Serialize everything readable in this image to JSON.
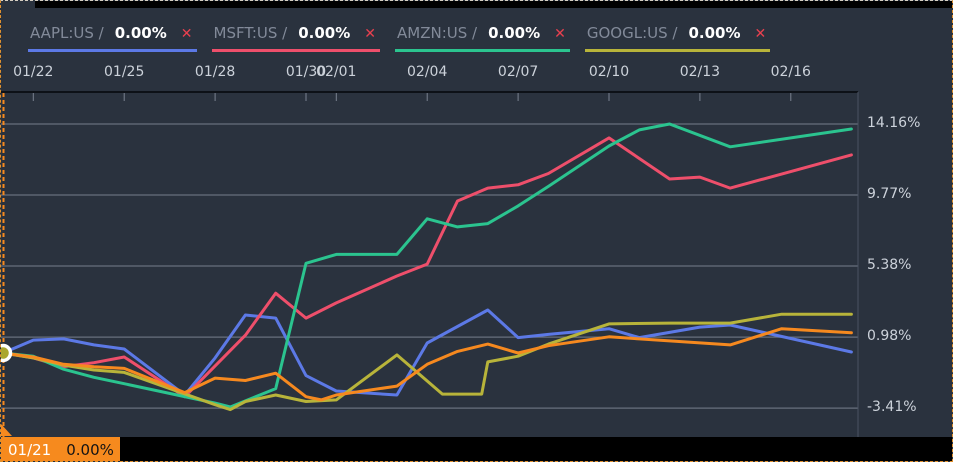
{
  "legend": {
    "items": [
      {
        "label": "AAPL:US /",
        "value": "0.00%",
        "close_icon": "✕",
        "color": "#5c79e6"
      },
      {
        "label": "MSFT:US /",
        "value": "0.00%",
        "close_icon": "✕",
        "color": "#ee4f6b"
      },
      {
        "label": "AMZN:US /",
        "value": "0.00%",
        "close_icon": "✕",
        "color": "#2bc48f"
      },
      {
        "label": "GOOGL:US /",
        "value": "0.00%",
        "close_icon": "✕",
        "color": "#b8b43a"
      }
    ]
  },
  "tooltip_badge": {
    "date": "01/21",
    "value": "0.00%",
    "bg_color": "#f68a1e"
  },
  "colors": {
    "background": "#2a323e",
    "grid": "#68707d",
    "axis_text": "#ccd2da",
    "tick": "#7b8391",
    "plot_top_border": "#0d1117",
    "crosshair_orange": "#f6891f",
    "marker_ring": "#ffffff",
    "marker_fill": "#aaa62e"
  },
  "chart_data": {
    "type": "line",
    "title": "",
    "xlabel": "",
    "ylabel": "",
    "x_unit": "calendar days since 01/21",
    "grid": "horizontal",
    "legend_position": "top",
    "ylim_pct": [
      -5.3,
      16.1
    ],
    "x_axis_ticks": [
      {
        "day": 1,
        "label": "01/22"
      },
      {
        "day": 4,
        "label": "01/25"
      },
      {
        "day": 7,
        "label": "01/28"
      },
      {
        "day": 10,
        "label": "01/30"
      },
      {
        "day": 11,
        "label": "02/01"
      },
      {
        "day": 14,
        "label": "02/04"
      },
      {
        "day": 17,
        "label": "02/07"
      },
      {
        "day": 20,
        "label": "02/10"
      },
      {
        "day": 23,
        "label": "02/13"
      },
      {
        "day": 26,
        "label": "02/16"
      }
    ],
    "y_axis_ticks": [
      {
        "pct": 14.16,
        "label": "14.16%"
      },
      {
        "pct": 9.77,
        "label": "9.77%"
      },
      {
        "pct": 5.38,
        "label": "5.38%"
      },
      {
        "pct": 0.98,
        "label": "0.98%"
      },
      {
        "pct": -3.41,
        "label": "-3.41%"
      }
    ],
    "baseline": {
      "date": "01/21",
      "pct": 0.0,
      "label": "0.00%"
    },
    "series": [
      {
        "name": "AAPL:US",
        "color": "#5c79e6",
        "points": [
          [
            0,
            0
          ],
          [
            1,
            0.8
          ],
          [
            2,
            0.87
          ],
          [
            3,
            0.5
          ],
          [
            4,
            0.25
          ],
          [
            6,
            -2.6
          ],
          [
            7,
            -0.3
          ],
          [
            8,
            2.35
          ],
          [
            9,
            2.16
          ],
          [
            10,
            -1.4
          ],
          [
            11,
            -2.35
          ],
          [
            13,
            -2.6
          ],
          [
            14,
            0.62
          ],
          [
            16,
            2.66
          ],
          [
            17,
            0.95
          ],
          [
            18,
            1.15
          ],
          [
            20,
            1.5
          ],
          [
            21,
            0.95
          ],
          [
            23,
            1.6
          ],
          [
            24,
            1.73
          ],
          [
            28,
            0.06
          ]
        ]
      },
      {
        "name": "MSFT:US",
        "color": "#ee4f6b",
        "points": [
          [
            0,
            0
          ],
          [
            1,
            -0.3
          ],
          [
            2,
            -0.85
          ],
          [
            3,
            -0.6
          ],
          [
            4,
            -0.25
          ],
          [
            6,
            -2.7
          ],
          [
            8,
            1.1
          ],
          [
            9,
            3.7
          ],
          [
            10,
            2.16
          ],
          [
            11,
            3.1
          ],
          [
            13,
            4.76
          ],
          [
            14,
            5.5
          ],
          [
            15,
            9.4
          ],
          [
            16,
            10.2
          ],
          [
            17,
            10.4
          ],
          [
            18,
            11.1
          ],
          [
            20,
            13.3
          ],
          [
            22,
            10.76
          ],
          [
            23,
            10.88
          ],
          [
            24,
            10.2
          ],
          [
            28,
            12.25
          ]
        ]
      },
      {
        "name": "AMZN:US",
        "color": "#2bc48f",
        "points": [
          [
            0,
            0
          ],
          [
            1,
            -0.2
          ],
          [
            2,
            -1.0
          ],
          [
            3,
            -1.5
          ],
          [
            4,
            -1.9
          ],
          [
            7,
            -3.1
          ],
          [
            7.5,
            -3.34
          ],
          [
            9,
            -2.2
          ],
          [
            10,
            5.55
          ],
          [
            11,
            6.1
          ],
          [
            13,
            6.1
          ],
          [
            14,
            8.3
          ],
          [
            15,
            7.8
          ],
          [
            16,
            8.0
          ],
          [
            17,
            9.1
          ],
          [
            18,
            10.3
          ],
          [
            20,
            12.8
          ],
          [
            21,
            13.8
          ],
          [
            22,
            14.16
          ],
          [
            24,
            12.75
          ],
          [
            28,
            13.85
          ]
        ]
      },
      {
        "name": "GOOGL:US",
        "color": "#b8b43a",
        "points": [
          [
            0,
            0
          ],
          [
            1,
            -0.3
          ],
          [
            2,
            -0.75
          ],
          [
            3,
            -1.05
          ],
          [
            4,
            -1.2
          ],
          [
            7,
            -3.2
          ],
          [
            7.5,
            -3.5
          ],
          [
            8,
            -3.0
          ],
          [
            9,
            -2.6
          ],
          [
            10,
            -3.0
          ],
          [
            11,
            -2.9
          ],
          [
            13,
            -0.12
          ],
          [
            14.5,
            -2.54
          ],
          [
            15.8,
            -2.54
          ],
          [
            16,
            -0.55
          ],
          [
            17,
            -0.2
          ],
          [
            18,
            0.55
          ],
          [
            20,
            1.8
          ],
          [
            22,
            1.85
          ],
          [
            24,
            1.85
          ],
          [
            25.7,
            2.4
          ],
          [
            28,
            2.4
          ]
        ]
      },
      {
        "name": "",
        "color": "#f6891f",
        "points": [
          [
            0,
            0
          ],
          [
            1,
            -0.25
          ],
          [
            2,
            -0.7
          ],
          [
            3,
            -0.85
          ],
          [
            4,
            -0.95
          ],
          [
            6,
            -2.45
          ],
          [
            7,
            -1.55
          ],
          [
            8,
            -1.7
          ],
          [
            9,
            -1.25
          ],
          [
            10,
            -2.7
          ],
          [
            10.5,
            -2.9
          ],
          [
            11,
            -2.6
          ],
          [
            13,
            -2.05
          ],
          [
            14,
            -0.7
          ],
          [
            15,
            0.1
          ],
          [
            16,
            0.55
          ],
          [
            17,
            0.0
          ],
          [
            18,
            0.45
          ],
          [
            20,
            1.0
          ],
          [
            21,
            0.87
          ],
          [
            24,
            0.5
          ],
          [
            25.7,
            1.5
          ],
          [
            28,
            1.25
          ]
        ]
      }
    ]
  }
}
